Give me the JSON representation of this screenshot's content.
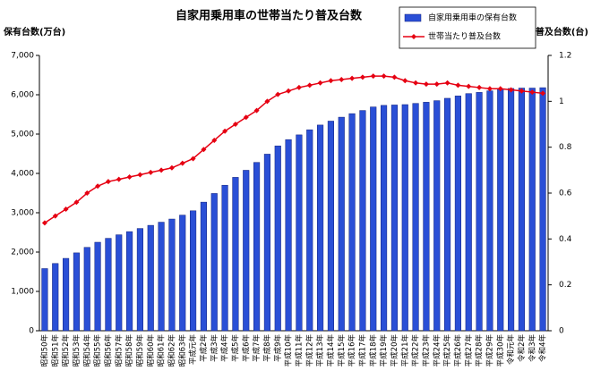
{
  "chart_data": {
    "type": "bar_line",
    "title": "自家用乗用車の世帯当たり普及台数",
    "ylabel": "保有台数(万台)",
    "y2label": "普及台数(台)",
    "categories": [
      "昭和50年",
      "昭和51年",
      "昭和52年",
      "昭和53年",
      "昭和54年",
      "昭和55年",
      "昭和56年",
      "昭和57年",
      "昭和58年",
      "昭和59年",
      "昭和60年",
      "昭和61年",
      "昭和62年",
      "昭和63年",
      "平成元年",
      "平成2年",
      "平成3年",
      "平成4年",
      "平成5年",
      "平成6年",
      "平成7年",
      "平成8年",
      "平成9年",
      "平成10年",
      "平成11年",
      "平成12年",
      "平成13年",
      "平成14年",
      "平成15年",
      "平成16年",
      "平成17年",
      "平成18年",
      "平成19年",
      "平成20年",
      "平成21年",
      "平成22年",
      "平成23年",
      "平成24年",
      "平成25年",
      "平成26年",
      "平成27年",
      "平成28年",
      "平成29年",
      "平成30年",
      "令和元年",
      "令和2年",
      "令和3年",
      "令和4年"
    ],
    "series": [
      {
        "name": "自家用乗用車の保有台数",
        "color": "#2a4fd6",
        "kind": "bar",
        "values": [
          1580,
          1710,
          1840,
          1980,
          2120,
          2250,
          2350,
          2440,
          2520,
          2600,
          2680,
          2760,
          2840,
          2940,
          3050,
          3270,
          3490,
          3700,
          3900,
          4080,
          4280,
          4490,
          4700,
          4860,
          4980,
          5110,
          5230,
          5330,
          5430,
          5520,
          5600,
          5690,
          5730,
          5740,
          5750,
          5780,
          5810,
          5850,
          5910,
          5970,
          6030,
          6060,
          6100,
          6140,
          6160,
          6170,
          6170,
          6180
        ]
      },
      {
        "name": "世帯当たり普及台数",
        "color": "#e60012",
        "kind": "line",
        "axis": "y2",
        "values": [
          0.47,
          0.5,
          0.53,
          0.56,
          0.6,
          0.63,
          0.65,
          0.66,
          0.67,
          0.68,
          0.69,
          0.7,
          0.71,
          0.73,
          0.75,
          0.79,
          0.83,
          0.87,
          0.9,
          0.93,
          0.96,
          1.0,
          1.03,
          1.045,
          1.06,
          1.07,
          1.08,
          1.09,
          1.095,
          1.1,
          1.105,
          1.11,
          1.11,
          1.105,
          1.09,
          1.08,
          1.075,
          1.075,
          1.08,
          1.07,
          1.065,
          1.06,
          1.055,
          1.055,
          1.05,
          1.045,
          1.04,
          1.035
        ]
      }
    ],
    "ylim": [
      0,
      7000
    ],
    "yticks": [
      0,
      {
        "value": 1000,
        "label": "1,000"
      },
      {
        "value": 2000,
        "label": "2,000"
      },
      {
        "value": 3000,
        "label": "3,000"
      },
      {
        "value": 4000,
        "label": "4,000"
      },
      {
        "value": 5000,
        "label": "5,000"
      },
      {
        "value": 6000,
        "label": "6,000"
      },
      {
        "value": 7000,
        "label": "7,000"
      }
    ],
    "y2lim": [
      0,
      1.2
    ],
    "y2ticks": [
      0,
      0.2,
      0.4,
      0.6,
      0.8,
      1,
      1.2
    ]
  }
}
